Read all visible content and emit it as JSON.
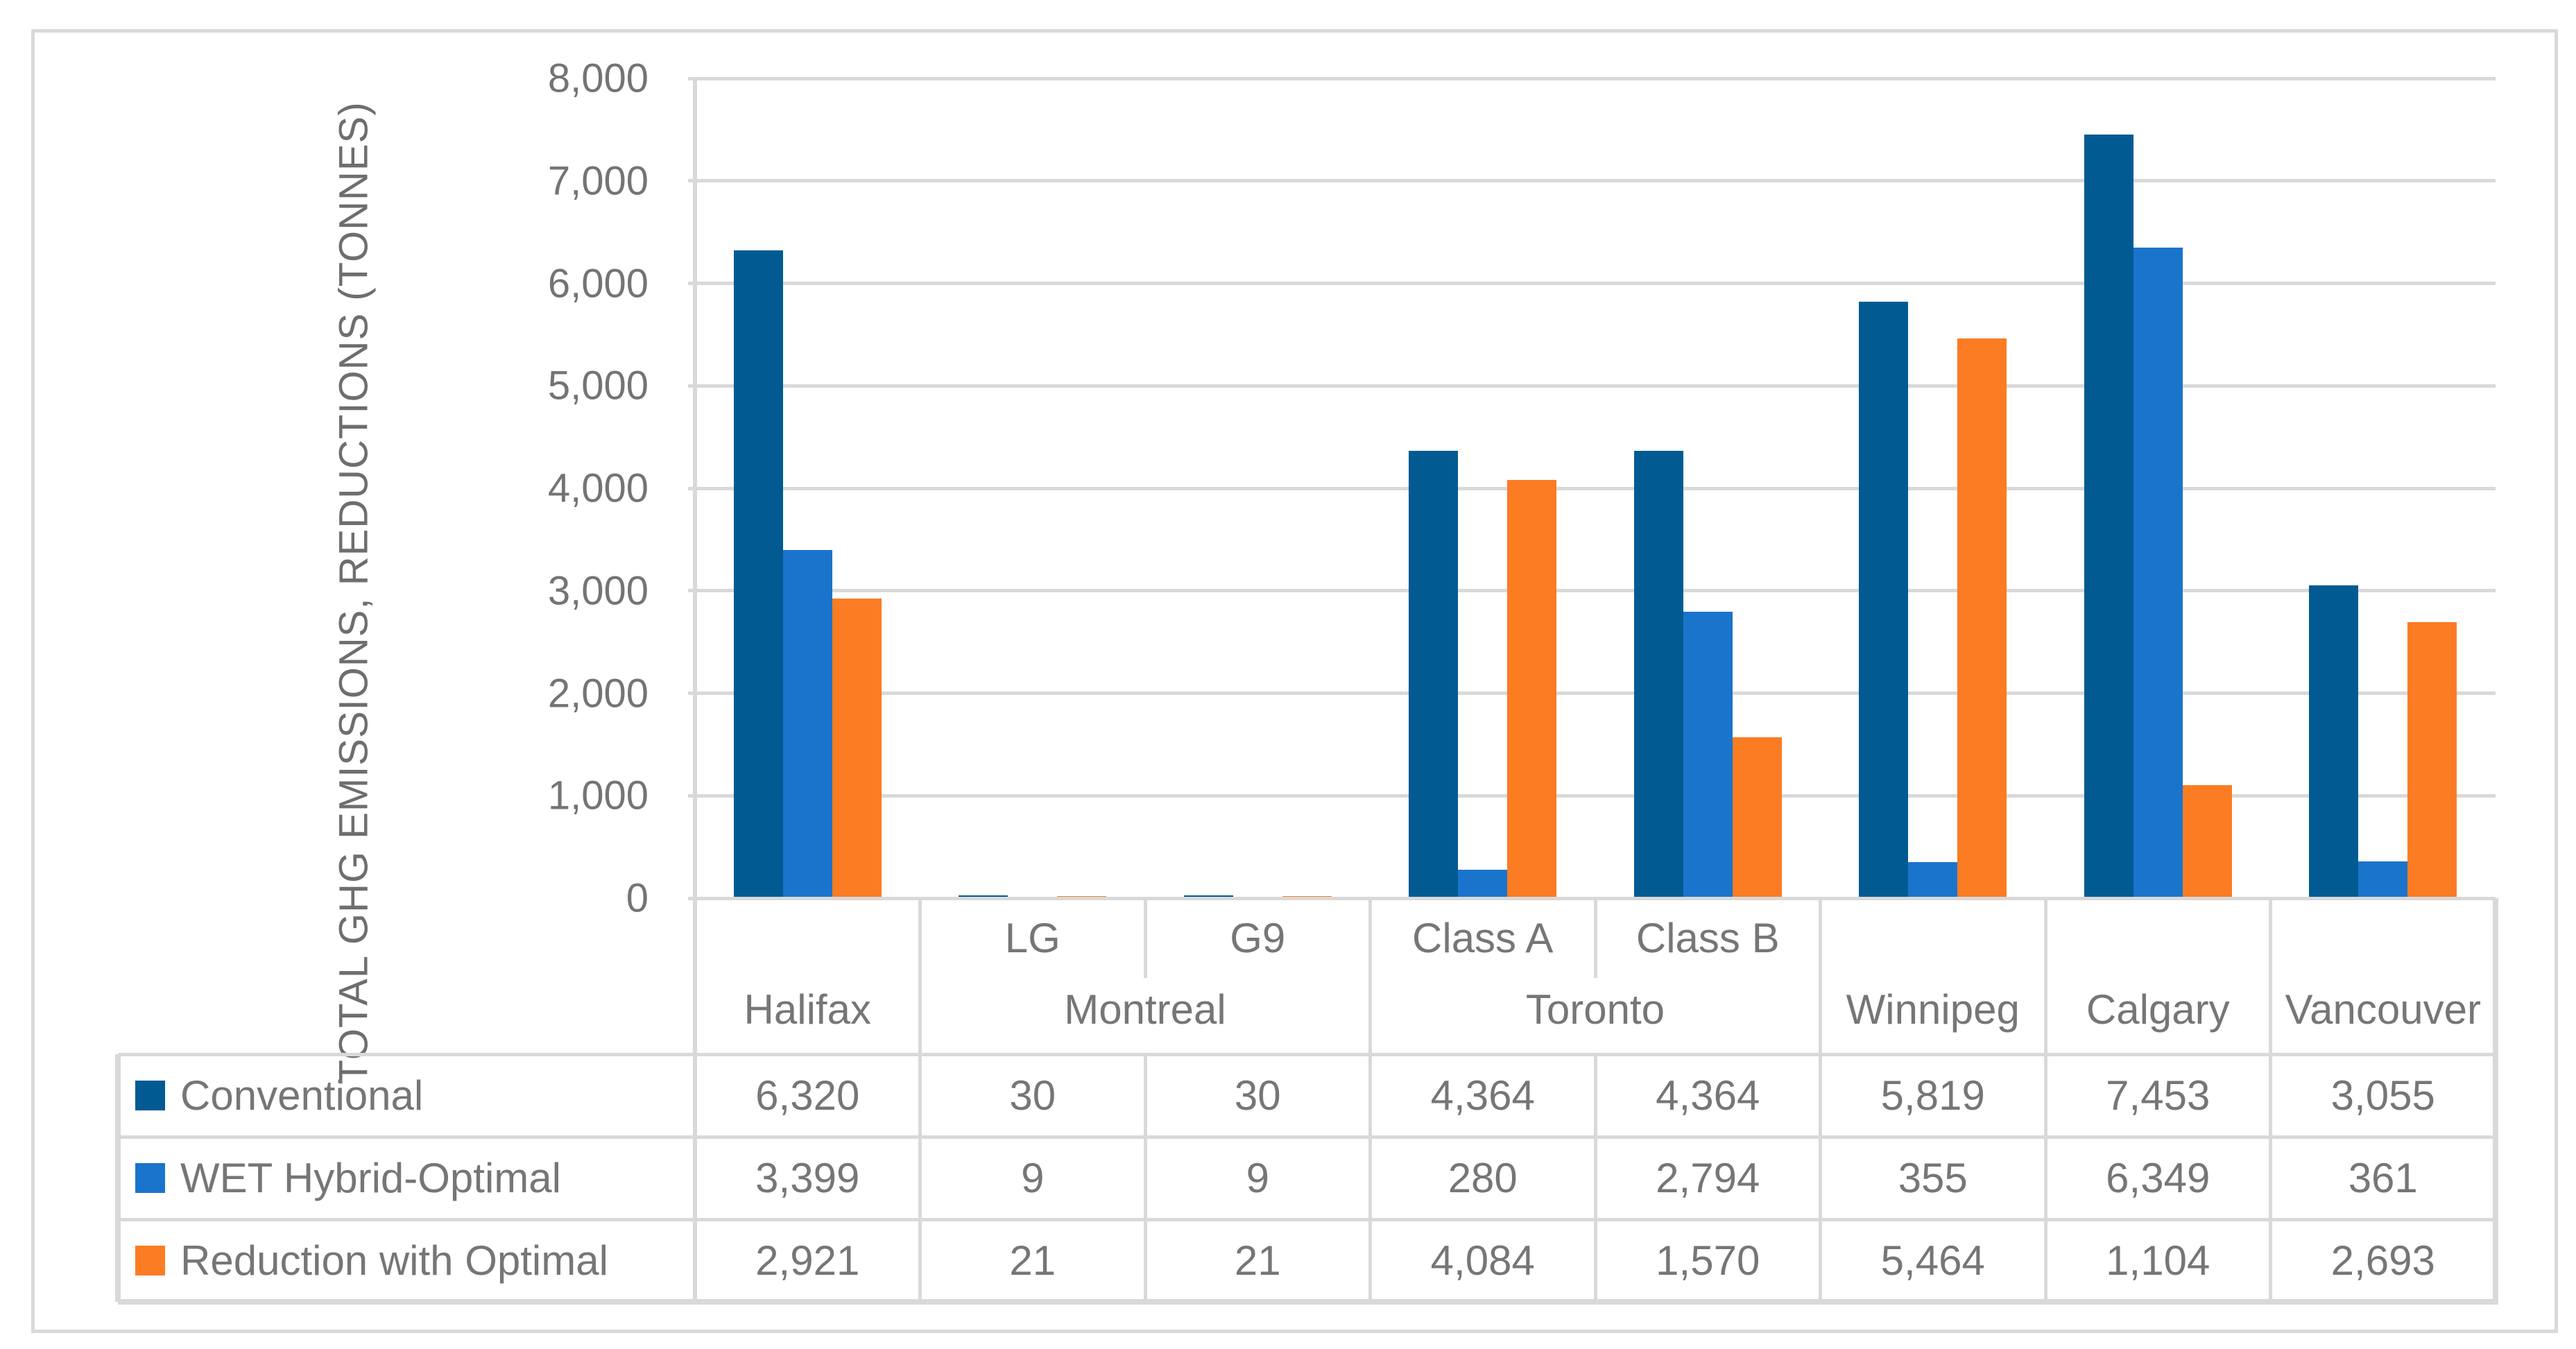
{
  "figure": {
    "background": "#FFFFFF",
    "border_color": "#D9D9D9"
  },
  "chart_data": {
    "type": "bar",
    "title": "",
    "ylabel": "TOTAL GHG EMISSIONS, REDUCTIONS (TONNES)",
    "xlabel": "",
    "ylim": [
      0,
      8000
    ],
    "ytick_step": 1000,
    "yticks": [
      0,
      1000,
      2000,
      3000,
      4000,
      5000,
      6000,
      7000,
      8000
    ],
    "ytick_labels": [
      "0",
      "1,000",
      "2,000",
      "3,000",
      "4,000",
      "5,000",
      "6,000",
      "7,000",
      "8,000"
    ],
    "grid": true,
    "grid_color": "#D9D9D9",
    "text_color": "#767676",
    "legend_position": "data-table-left",
    "groups": [
      {
        "label": "Halifax",
        "subs": []
      },
      {
        "label": "Montreal",
        "subs": [
          "LG",
          "G9"
        ]
      },
      {
        "label": "Toronto",
        "subs": [
          "Class A",
          "Class B"
        ]
      },
      {
        "label": "Winnipeg",
        "subs": []
      },
      {
        "label": "Calgary",
        "subs": []
      },
      {
        "label": "Vancouver",
        "subs": []
      }
    ],
    "flat_categories": [
      "Halifax",
      "Montreal LG",
      "Montreal G9",
      "Toronto Class A",
      "Toronto Class B",
      "Winnipeg",
      "Calgary",
      "Vancouver"
    ],
    "series": [
      {
        "name": "Conventional",
        "color": "#015B92",
        "values": [
          6320,
          30,
          30,
          4364,
          4364,
          5819,
          7453,
          3055
        ],
        "formatted": [
          "6,320",
          "30",
          "30",
          "4,364",
          "4,364",
          "5,819",
          "7,453",
          "3,055"
        ]
      },
      {
        "name": "WET Hybrid-Optimal",
        "color": "#1B74CC",
        "values": [
          3399,
          9,
          9,
          280,
          2794,
          355,
          6349,
          361
        ],
        "formatted": [
          "3,399",
          "9",
          "9",
          "280",
          "2,794",
          "355",
          "6,349",
          "361"
        ]
      },
      {
        "name": "Reduction with Optimal",
        "color": "#FB7C23",
        "values": [
          2921,
          21,
          21,
          4084,
          1570,
          5464,
          1104,
          2693
        ],
        "formatted": [
          "2,921",
          "21",
          "21",
          "4,084",
          "1,570",
          "5,464",
          "1,104",
          "2,693"
        ]
      }
    ]
  }
}
